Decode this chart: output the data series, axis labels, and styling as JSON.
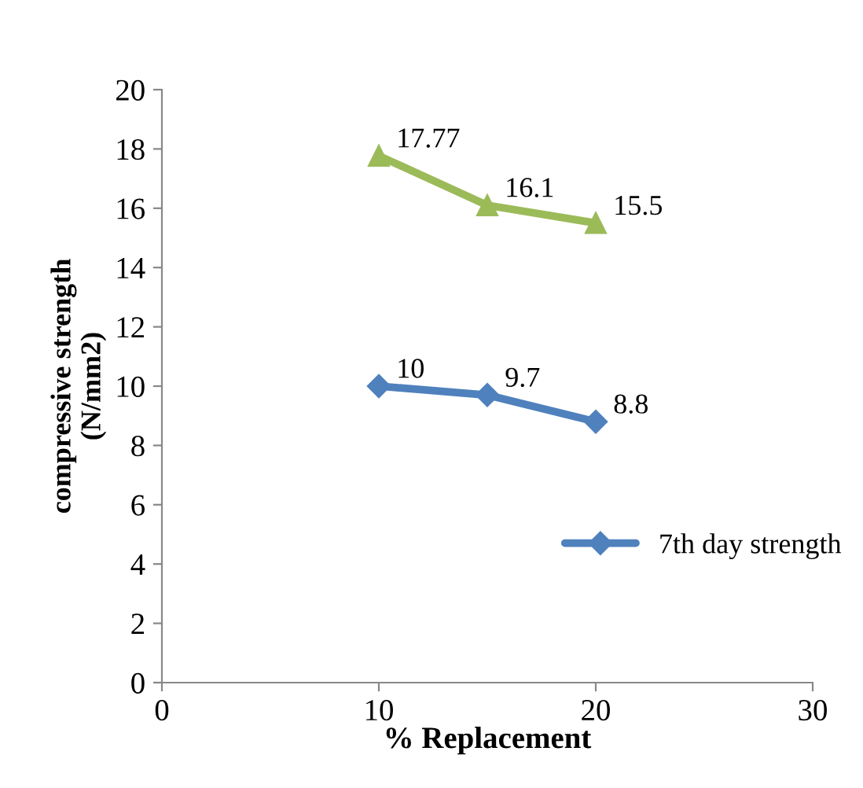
{
  "chart_data": {
    "type": "line",
    "xlabel": "% Replacement",
    "ylabel": "compressive strength\n(N/mm2)",
    "x": [
      10,
      15,
      20
    ],
    "series": [
      {
        "color": "#9bbb59",
        "values": [
          17.77,
          16.1,
          15.5
        ],
        "marker": "triangle"
      },
      {
        "name": "7th day strength",
        "color": "#4f81bd",
        "values": [
          10,
          9.7,
          8.8
        ],
        "marker": "diamond"
      }
    ],
    "xlim": [
      0,
      30
    ],
    "xticks": [
      0,
      10,
      20,
      30
    ],
    "ylim": [
      0,
      20
    ],
    "yticks": [
      0,
      2,
      4,
      6,
      8,
      10,
      12,
      14,
      16,
      18,
      20
    ],
    "grid": false,
    "legend": "right",
    "data_labels": true,
    "line_style": "solid"
  }
}
